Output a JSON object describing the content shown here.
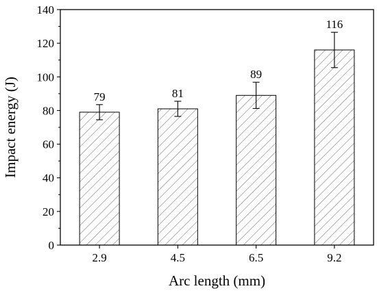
{
  "chart_data": {
    "type": "bar",
    "categories": [
      "2.9",
      "4.5",
      "6.5",
      "9.2"
    ],
    "values": [
      79,
      81,
      89,
      116
    ],
    "errors": [
      4.5,
      4.5,
      7.8,
      10.5
    ],
    "data_labels": [
      "79",
      "81",
      "89",
      "116"
    ],
    "xlabel": "Arc length (mm)",
    "ylabel": "Impact energy (J)",
    "ylim": [
      0,
      140
    ],
    "yticks": [
      "0",
      "20",
      "40",
      "60",
      "80",
      "100",
      "120",
      "140"
    ],
    "grid": false,
    "bar_fill": "hatched",
    "colors": {
      "bar_stroke": "#000000",
      "hatch": "#555555",
      "axis": "#000000"
    }
  }
}
